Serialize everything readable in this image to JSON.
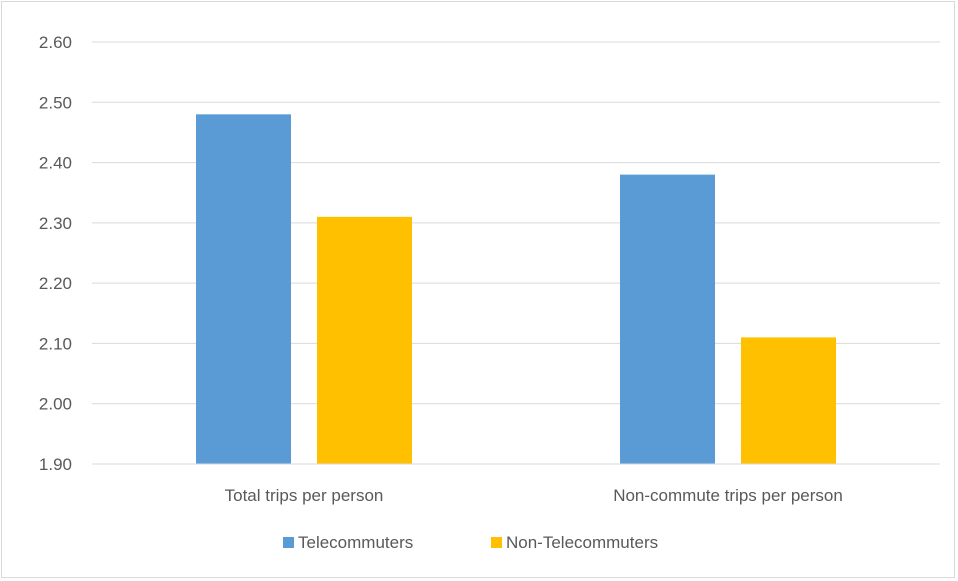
{
  "chart_data": {
    "type": "bar",
    "categories": [
      "Total trips per person",
      "Non-commute trips per person"
    ],
    "series": [
      {
        "name": "Telecommuters",
        "color": "#5b9bd5",
        "values": [
          2.48,
          2.38
        ]
      },
      {
        "name": "Non-Telecommuters",
        "color": "#ffc000",
        "values": [
          2.31,
          2.11
        ]
      }
    ],
    "ylim": [
      1.9,
      2.6
    ],
    "yticks": [
      "1.90",
      "2.00",
      "2.10",
      "2.20",
      "2.30",
      "2.40",
      "2.50",
      "2.60"
    ],
    "grid": true,
    "legend_position": "bottom"
  }
}
